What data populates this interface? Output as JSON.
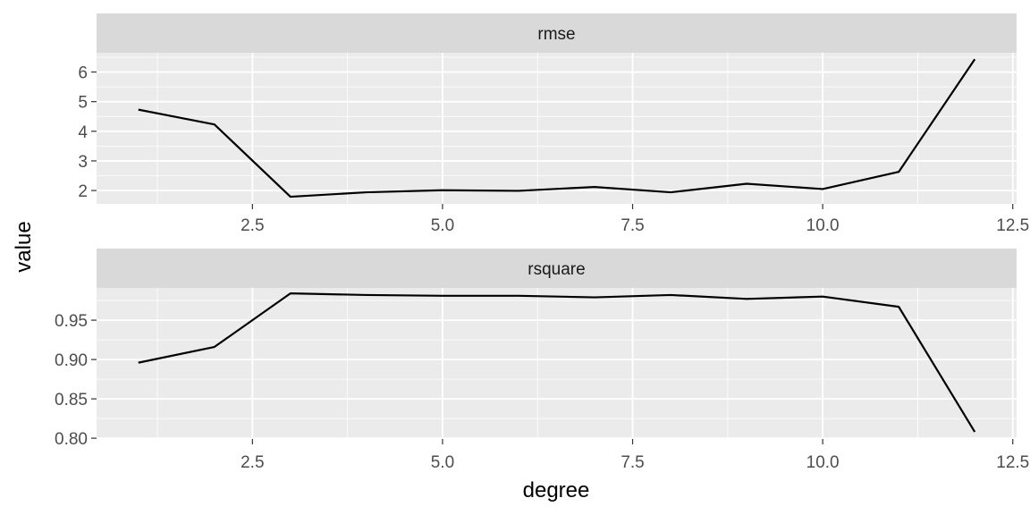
{
  "chart_data": {
    "type": "line",
    "layout": "faceted-vertical",
    "xlabel": "degree",
    "ylabel": "value",
    "x_ticks": [
      "2.5",
      "5.0",
      "7.5",
      "10.0",
      "12.5"
    ],
    "xlim": [
      0.45,
      12.55
    ],
    "grid": true,
    "legend": "none",
    "line_color": "#000000",
    "panel_background": "#ebebeb",
    "strip_background": "#d9d9d9",
    "panels": [
      {
        "strip_label": "rmse",
        "ylim": [
          1.55,
          6.65
        ],
        "y_ticks": [
          "2",
          "3",
          "4",
          "5",
          "6"
        ],
        "series": [
          {
            "x": [
              1,
              2,
              3,
              4,
              5,
              6,
              7,
              8,
              9,
              10,
              11,
              12
            ],
            "y": [
              4.73,
              4.23,
              1.79,
              1.94,
              2.01,
              1.99,
              2.12,
              1.94,
              2.23,
              2.05,
              2.63,
              6.43
            ]
          }
        ]
      },
      {
        "strip_label": "rsquare",
        "ylim": [
          0.799,
          0.991
        ],
        "y_ticks": [
          "0.80",
          "0.85",
          "0.90",
          "0.95"
        ],
        "series": [
          {
            "x": [
              1,
              2,
              3,
              4,
              5,
              6,
              7,
              8,
              9,
              10,
              11,
              12
            ],
            "y": [
              0.896,
              0.916,
              0.984,
              0.982,
              0.981,
              0.981,
              0.979,
              0.982,
              0.977,
              0.98,
              0.967,
              0.808
            ]
          }
        ]
      }
    ]
  }
}
